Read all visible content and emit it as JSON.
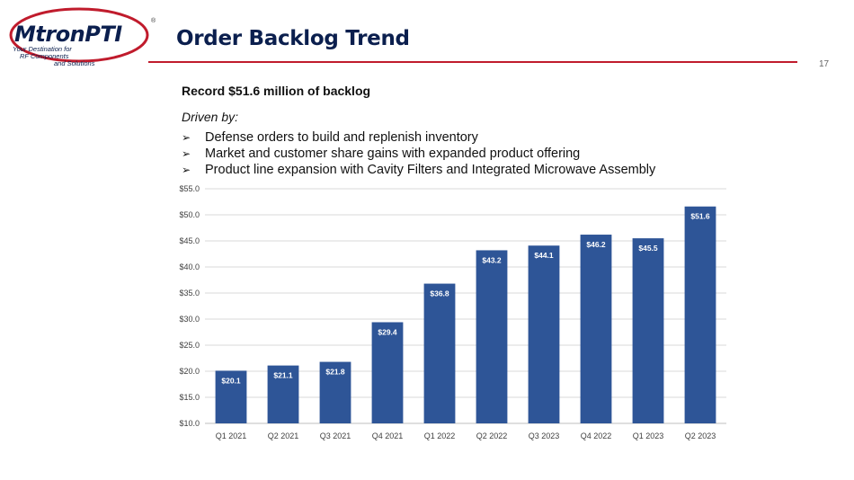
{
  "logo": {
    "brand": "MtronPTI",
    "registered": "®",
    "tagline_lines": [
      "Your Destination for",
      "RF Components",
      "and Solutions"
    ]
  },
  "slide": {
    "title": "Order Backlog Trend",
    "page_number": "17",
    "headline": "Record $51.6 million of backlog",
    "driven_by": "Driven by:",
    "bullets": [
      "Defense orders to build and replenish inventory",
      "Market and customer share gains with expanded product offering",
      "Product line expansion with Cavity Filters and Integrated Microwave Assembly"
    ]
  },
  "colors": {
    "bar": "#2e5597",
    "title": "#0b1f4e",
    "rule": "#c01b2c",
    "logo_swoosh": "#c01b2c",
    "grid": "#d9d9d9"
  },
  "chart_data": {
    "type": "bar",
    "categories": [
      "Q1 2021",
      "Q2 2021",
      "Q3 2021",
      "Q4 2021",
      "Q1 2022",
      "Q2 2022",
      "Q3 2023",
      "Q4 2022",
      "Q1 2023",
      "Q2 2023"
    ],
    "values": [
      20.1,
      21.1,
      21.8,
      29.4,
      36.8,
      43.2,
      44.1,
      46.2,
      45.5,
      51.6
    ],
    "data_labels": [
      "$20.1",
      "$21.1",
      "$21.8",
      "$29.4",
      "$36.8",
      "$43.2",
      "$44.1",
      "$46.2",
      "$45.5",
      "$51.6"
    ],
    "y_ticks": [
      10,
      15,
      20,
      25,
      30,
      35,
      40,
      45,
      50,
      55
    ],
    "y_tick_labels": [
      "$10.0",
      "$15.0",
      "$20.0",
      "$25.0",
      "$30.0",
      "$35.0",
      "$40.0",
      "$45.0",
      "$50.0",
      "$55.0"
    ],
    "ylim": [
      10,
      55
    ],
    "grid": true,
    "legend": "none"
  }
}
